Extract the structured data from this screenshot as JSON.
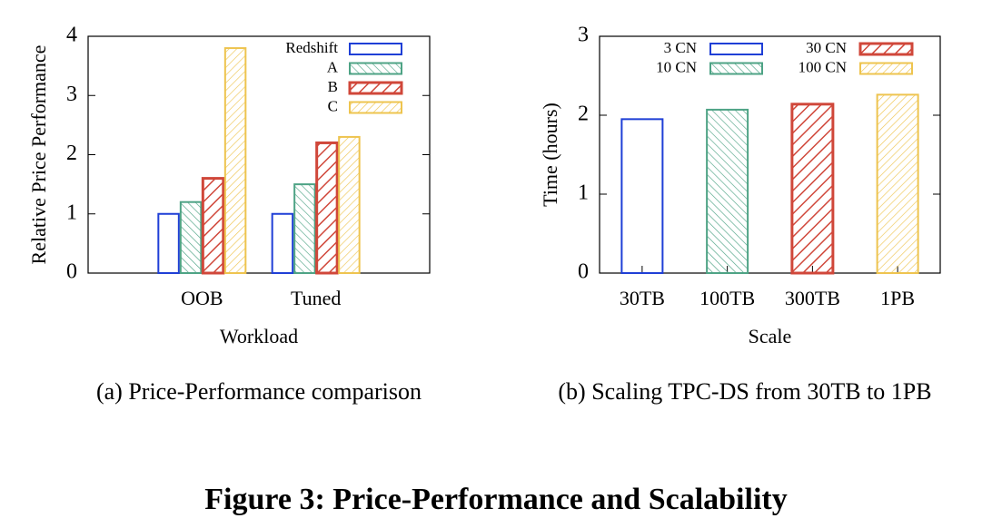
{
  "chart_data": [
    {
      "type": "bar",
      "caption": "(a) Price-Performance comparison",
      "xlabel": "Workload",
      "ylabel": "Relative Price Performance",
      "categories": [
        "OOB",
        "Tuned"
      ],
      "series": [
        {
          "name": "Redshift",
          "color": "#1f3fd6",
          "pattern": "none",
          "values": [
            1,
            1
          ]
        },
        {
          "name": "A",
          "color": "#4ea385",
          "pattern": "thin-back",
          "values": [
            1.2,
            1.5
          ]
        },
        {
          "name": "B",
          "color": "#d0473a",
          "pattern": "thick-forward",
          "values": [
            1.6,
            2.2
          ]
        },
        {
          "name": "C",
          "color": "#eec44f",
          "pattern": "thin-forward",
          "values": [
            3.8,
            2.3
          ]
        }
      ],
      "ylim": [
        0,
        4
      ],
      "yticks": [
        0,
        1,
        2,
        3,
        4
      ],
      "legend": "upper right",
      "legend_columns": 1
    },
    {
      "type": "bar",
      "caption": "(b) Scaling TPC-DS from 30TB to 1PB",
      "xlabel": "Scale",
      "ylabel": "Time (hours)",
      "categories": [
        "30TB",
        "100TB",
        "300TB",
        "1PB"
      ],
      "series": [
        {
          "name": "3 CN",
          "color": "#1f3fd6",
          "pattern": "none",
          "values": [
            1.95,
            null,
            null,
            null
          ]
        },
        {
          "name": "10 CN",
          "color": "#4ea385",
          "pattern": "thin-back",
          "values": [
            null,
            2.07,
            null,
            null
          ]
        },
        {
          "name": "30 CN",
          "color": "#d0473a",
          "pattern": "thick-forward",
          "values": [
            null,
            null,
            2.14,
            null
          ]
        },
        {
          "name": "100 CN",
          "color": "#eec44f",
          "pattern": "thin-forward",
          "values": [
            null,
            null,
            null,
            2.26
          ]
        }
      ],
      "ylim": [
        0,
        3
      ],
      "yticks": [
        0,
        1,
        2,
        3
      ],
      "legend": "upper left",
      "legend_columns": 2
    }
  ],
  "figure_caption": "Figure 3: Price-Performance and Scalability"
}
